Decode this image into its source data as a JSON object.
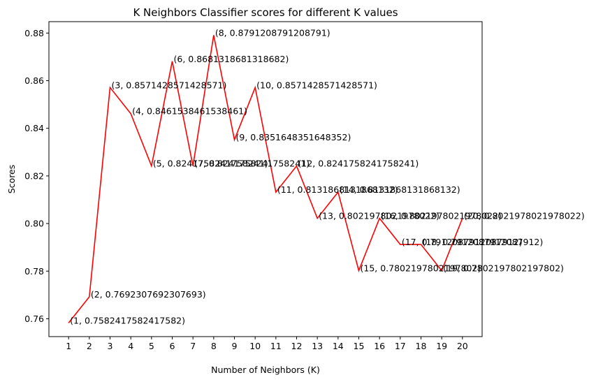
{
  "chart_data": {
    "type": "line",
    "title": "K Neighbors Classifier scores for different K values",
    "xlabel": "Number of Neighbors (K)",
    "ylabel": "Scores",
    "xlim": [
      0.05,
      20.95
    ],
    "ylim": [
      0.7525,
      0.8848
    ],
    "grid": false,
    "color": "#ff0000",
    "x": [
      1,
      2,
      3,
      4,
      5,
      6,
      7,
      8,
      9,
      10,
      11,
      12,
      13,
      14,
      15,
      16,
      17,
      18,
      19,
      20
    ],
    "y": [
      0.7582417582417582,
      0.7692307692307693,
      0.8571428571428571,
      0.8461538461538461,
      0.8241758241758241,
      0.8681318681318682,
      0.8241758241758241,
      0.8791208791208791,
      0.8351648351648352,
      0.8571428571428571,
      0.8131868131868132,
      0.8241758241758241,
      0.8021978021978022,
      0.8131868131868132,
      0.7802197802197802,
      0.8021978021978022,
      0.7912087912087912,
      0.7912087912087912,
      0.7802197802197802,
      0.8021978021978022
    ],
    "point_labels": [
      "(1, 0.7582417582417582)",
      "(2, 0.7692307692307693)",
      "(3, 0.8571428571428571)",
      "(4, 0.8461538461538461)",
      "(5, 0.8241758241758241)",
      "(6, 0.8681318681318682)",
      "(7, 0.8241758241758241)",
      "(8, 0.8791208791208791)",
      "(9, 0.8351648351648352)",
      "(10, 0.8571428571428571)",
      "(11, 0.8131868131868132)",
      "(12, 0.8241758241758241)",
      "(13, 0.8021978021978022)",
      "(14, 0.8131868131868132)",
      "(15, 0.7802197802197802)",
      "(16, 0.8021978021978022)",
      "(17, 0.7912087912087912)",
      "(18, 0.7912087912087912)",
      "(19, 0.7802197802197802)",
      "(20, 0.8021978021978022)"
    ],
    "xticks": [
      "1",
      "2",
      "3",
      "4",
      "5",
      "6",
      "7",
      "8",
      "9",
      "10",
      "11",
      "12",
      "13",
      "14",
      "15",
      "16",
      "17",
      "18",
      "19",
      "20"
    ],
    "yticks": [
      {
        "value": 0.76,
        "label": "0.76"
      },
      {
        "value": 0.78,
        "label": "0.78"
      },
      {
        "value": 0.8,
        "label": "0.80"
      },
      {
        "value": 0.82,
        "label": "0.82"
      },
      {
        "value": 0.84,
        "label": "0.84"
      },
      {
        "value": 0.86,
        "label": "0.86"
      },
      {
        "value": 0.88,
        "label": "0.88"
      }
    ]
  }
}
